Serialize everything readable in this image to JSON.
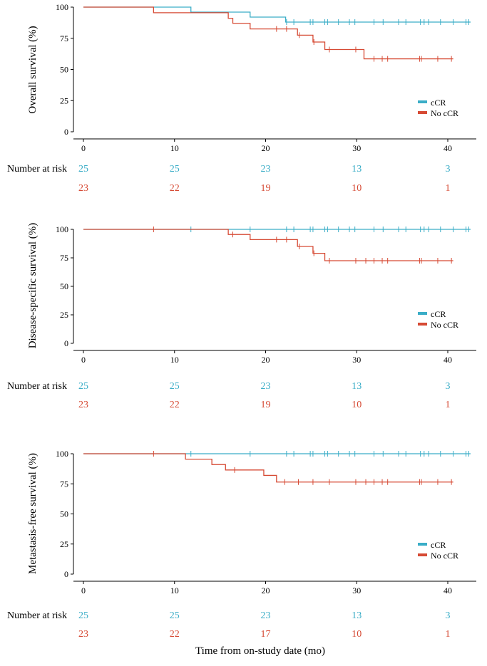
{
  "colors": {
    "cCR": "#3AADC7",
    "No cCR": "#D64A34",
    "axis": "#000000"
  },
  "xlabel": "Time from on-study date (mo)",
  "chart_data": [
    {
      "type": "line",
      "step": true,
      "title": "",
      "ylabel": "Overall survival (%)",
      "xlim": [
        0,
        43
      ],
      "ylim": [
        0,
        100
      ],
      "xticks": [
        0,
        10,
        20,
        30,
        40
      ],
      "yticks": [
        0,
        25,
        50,
        75,
        100
      ],
      "legend": {
        "position": "bottom-right",
        "entries": [
          "cCR",
          "No cCR"
        ]
      },
      "risk_title": "Number at risk",
      "series": [
        {
          "name": "cCR",
          "x": [
            0,
            11.8,
            18.3,
            22.2,
            42.5
          ],
          "y": [
            100,
            96,
            92,
            88,
            88
          ],
          "censor_x": [
            22.3,
            23.1,
            24.9,
            25.2,
            26.5,
            26.8,
            28.0,
            29.2,
            29.8,
            31.9,
            32.9,
            34.6,
            35.4,
            37.0,
            37.4,
            37.9,
            39.2,
            40.6,
            42.0,
            42.3
          ],
          "risk": [
            "25",
            "25",
            "23",
            "13",
            "3"
          ]
        },
        {
          "name": "No cCR",
          "x": [
            0,
            7.7,
            15.9,
            16.4,
            18.3,
            23.5,
            25.2,
            26.5,
            30.8,
            40.6
          ],
          "y": [
            100,
            95.5,
            91,
            87,
            82.5,
            77.5,
            72,
            66,
            58.5,
            58.5
          ],
          "censor_x": [
            21.2,
            22.3,
            23.7,
            25.3,
            27.0,
            29.9,
            31.9,
            32.8,
            33.4,
            36.9,
            37.1,
            38.9,
            40.4
          ],
          "risk": [
            "23",
            "22",
            "19",
            "10",
            "1"
          ]
        }
      ]
    },
    {
      "type": "line",
      "step": true,
      "title": "",
      "ylabel": "Disease-specific survival (%)",
      "xlim": [
        0,
        43
      ],
      "ylim": [
        0,
        100
      ],
      "xticks": [
        0,
        10,
        20,
        30,
        40
      ],
      "yticks": [
        0,
        25,
        50,
        75,
        100
      ],
      "legend": {
        "position": "bottom-right",
        "entries": [
          "cCR",
          "No cCR"
        ]
      },
      "risk_title": "Number at risk",
      "series": [
        {
          "name": "cCR",
          "x": [
            0,
            42.5
          ],
          "y": [
            100,
            100
          ],
          "censor_x": [
            11.8,
            18.3,
            22.3,
            23.1,
            24.9,
            25.2,
            26.5,
            26.8,
            28.0,
            29.2,
            29.8,
            31.9,
            32.9,
            34.6,
            35.4,
            37.0,
            37.4,
            37.9,
            39.2,
            40.6,
            42.0,
            42.3
          ],
          "risk": [
            "25",
            "25",
            "23",
            "13",
            "3"
          ]
        },
        {
          "name": "No cCR",
          "x": [
            0,
            15.9,
            18.3,
            23.5,
            25.2,
            26.5,
            40.6
          ],
          "y": [
            100,
            95.5,
            91,
            85,
            79,
            72.5,
            72.5
          ],
          "censor_x": [
            7.7,
            16.4,
            21.2,
            22.3,
            23.7,
            25.3,
            27.0,
            29.9,
            31.0,
            31.9,
            32.8,
            33.4,
            36.9,
            37.1,
            38.9,
            40.4
          ],
          "risk": [
            "23",
            "22",
            "19",
            "10",
            "1"
          ]
        }
      ]
    },
    {
      "type": "line",
      "step": true,
      "title": "",
      "ylabel": "Metastasis-free survival (%)",
      "xlim": [
        0,
        43
      ],
      "ylim": [
        0,
        100
      ],
      "xticks": [
        0,
        10,
        20,
        30,
        40
      ],
      "yticks": [
        0,
        25,
        50,
        75,
        100
      ],
      "legend": {
        "position": "bottom-right",
        "entries": [
          "cCR",
          "No cCR"
        ]
      },
      "risk_title": "Number at risk",
      "series": [
        {
          "name": "cCR",
          "x": [
            0,
            42.5
          ],
          "y": [
            100,
            100
          ],
          "censor_x": [
            11.8,
            18.3,
            22.3,
            23.1,
            24.9,
            25.2,
            26.5,
            26.8,
            28.0,
            29.2,
            29.8,
            31.9,
            32.9,
            34.6,
            35.4,
            37.0,
            37.4,
            37.9,
            39.2,
            40.6,
            42.0,
            42.3
          ],
          "risk": [
            "25",
            "25",
            "23",
            "13",
            "3"
          ]
        },
        {
          "name": "No cCR",
          "x": [
            0,
            11.2,
            14.1,
            15.6,
            19.8,
            21.2,
            40.6
          ],
          "y": [
            100,
            95.5,
            91,
            86.5,
            82,
            76.5,
            76.5
          ],
          "censor_x": [
            7.7,
            16.6,
            22.1,
            23.6,
            25.2,
            27.0,
            29.9,
            31.0,
            31.9,
            32.8,
            33.4,
            36.9,
            37.1,
            38.9,
            40.4
          ],
          "risk": [
            "23",
            "22",
            "17",
            "10",
            "1"
          ]
        }
      ]
    }
  ]
}
